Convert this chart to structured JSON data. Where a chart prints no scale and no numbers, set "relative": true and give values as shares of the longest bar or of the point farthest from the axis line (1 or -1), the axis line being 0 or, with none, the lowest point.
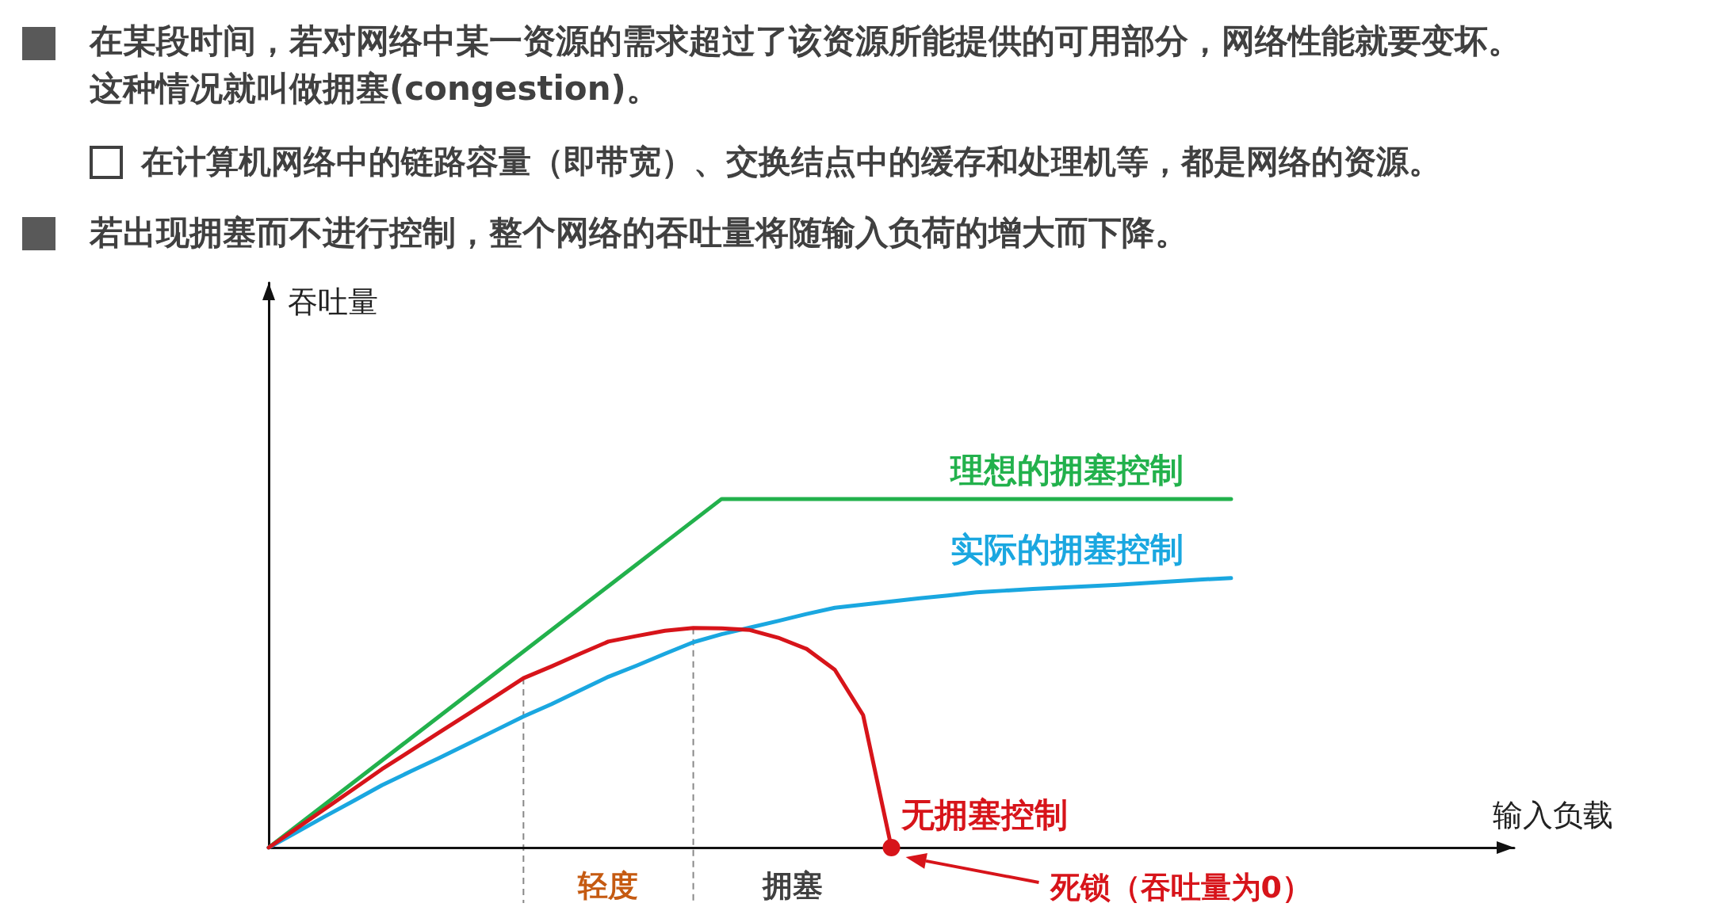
{
  "chart_data": {
    "type": "line",
    "title": "在某段时间，若对网络中某一资源的需求超过了该资源所能提供的可用部分，网络性能就要变坏。这种情况就叫做拥塞(congestion)。",
    "subtitle": "在计算机网络中的链路容量（即带宽）、交换结点中的缓存和处理机等，都是网络的资源。",
    "annotations": [
      "若出现拥塞而不进行控制，整个网络的吞吐量将随输入负荷的增大而下降。",
      "轻度",
      "拥塞",
      "死锁（吞吐量为0）",
      "吞吐量"
    ],
    "xlabel": "输入负载",
    "relative": true,
    "marker": "none",
    "line_style": "solid",
    "categories": [
      null,
      null,
      null,
      null,
      null,
      null,
      null,
      null,
      null,
      null,
      null,
      null,
      null,
      null,
      null,
      null,
      null,
      null,
      null,
      null,
      null,
      null,
      null,
      null,
      null,
      null,
      null,
      null,
      null,
      null,
      null,
      null,
      null,
      null,
      null,
      null,
      null,
      null,
      null,
      null,
      null,
      null,
      null,
      null,
      null
    ],
    "series": [
      {
        "name": "理想的拥塞控制",
        "color": "#22b14c",
        "values": [
          0,
          0.0625,
          0.125,
          0.1875,
          0.25,
          0.3125,
          0.375,
          0.4375,
          0.5,
          0.5625,
          0.625,
          0.6875,
          0.75,
          0.8125,
          0.875,
          0.9375,
          1,
          1,
          1,
          1,
          1,
          1,
          1,
          1,
          1,
          1,
          1,
          1,
          1,
          1,
          1,
          1,
          1,
          1,
          1,
          null,
          null,
          null,
          null,
          null,
          null,
          null,
          null,
          null,
          null
        ]
      },
      {
        "name": "实际的拥塞控制",
        "color": "#1aa7e0",
        "values": [
          0,
          0.045,
          0.09,
          0.134,
          0.179,
          0.218,
          0.256,
          0.296,
          0.336,
          0.376,
          0.412,
          0.451,
          0.49,
          0.522,
          0.556,
          0.589,
          0.612,
          0.631,
          0.65,
          0.67,
          0.688,
          0.697,
          0.706,
          0.715,
          0.723,
          0.732,
          0.737,
          0.742,
          0.746,
          0.75,
          0.754,
          0.759,
          0.764,
          0.769,
          0.773,
          null,
          null,
          null,
          null,
          null,
          null,
          null,
          null,
          null,
          null
        ]
      },
      {
        "name": "无拥塞控制",
        "color": "#d7141a",
        "values": [
          0,
          0.056,
          0.112,
          0.168,
          0.225,
          0.277,
          0.329,
          0.381,
          0.433,
          0.486,
          0.52,
          0.556,
          0.591,
          0.607,
          0.622,
          0.63,
          0.629,
          0.624,
          0.602,
          0.57,
          0.51,
          0.38,
          0,
          null,
          null,
          null,
          null,
          null,
          null,
          null,
          null,
          null,
          null,
          null,
          null,
          null,
          null,
          null,
          null,
          null,
          null,
          null,
          null,
          null,
          null
        ]
      }
    ]
  }
}
